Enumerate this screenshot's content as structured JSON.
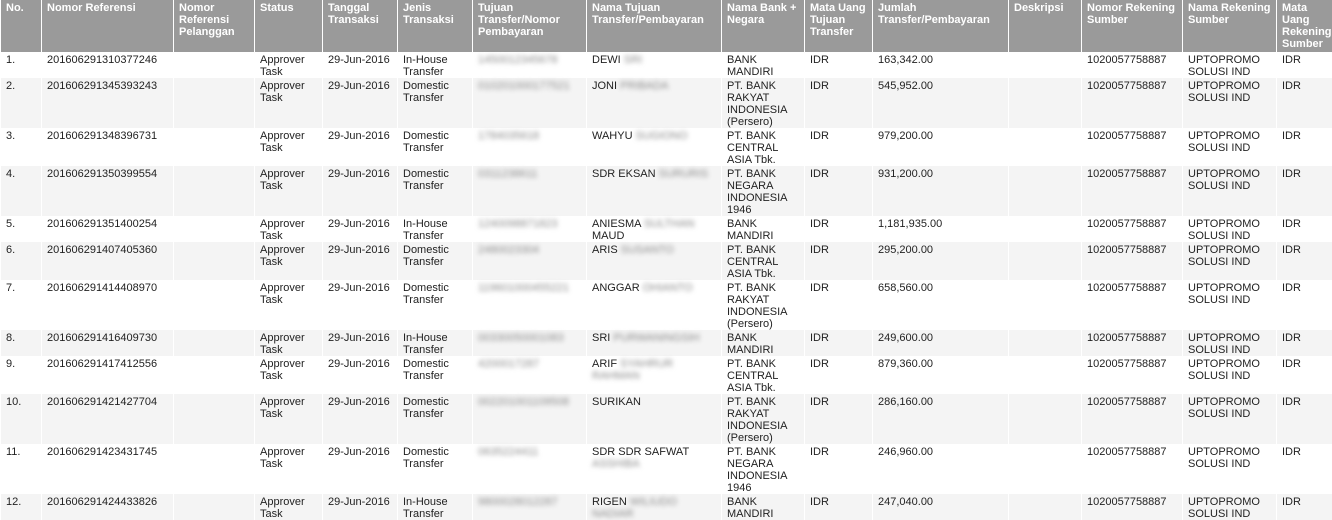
{
  "columns": [
    {
      "key": "no",
      "label": "No."
    },
    {
      "key": "ref",
      "label": "Nomor Referensi"
    },
    {
      "key": "cust_ref",
      "label": "Nomor Referensi Pelanggan"
    },
    {
      "key": "status",
      "label": "Status"
    },
    {
      "key": "date",
      "label": "Tanggal Transaksi"
    },
    {
      "key": "type",
      "label": "Jenis Transaksi"
    },
    {
      "key": "dest",
      "label": "Tujuan Transfer/Nomor Pembayaran"
    },
    {
      "key": "dest_name",
      "label": "Nama Tujuan Transfer/Pembayaran"
    },
    {
      "key": "bank",
      "label": "Nama Bank + Negara"
    },
    {
      "key": "cur",
      "label": "Mata Uang Tujuan Transfer"
    },
    {
      "key": "amount",
      "label": "Jumlah Transfer/Pembayaran"
    },
    {
      "key": "desc",
      "label": "Deskripsi"
    },
    {
      "key": "src_acc",
      "label": "Nomor Rekening Sumber"
    },
    {
      "key": "src_name",
      "label": "Nama Rekening Sumber"
    },
    {
      "key": "src_cur",
      "label": "Mata Uang Rekening Sumber"
    }
  ],
  "rows": [
    {
      "no": "1.",
      "ref": "201606291310377246",
      "cust_ref": "",
      "status": "Approver Task",
      "date": "29-Jun-2016",
      "type": "In-House Transfer",
      "dest": "1450012345678",
      "dest_name": "DEWI",
      "dest_name_hidden": "SRI",
      "bank": "BANK MANDIRI",
      "cur": "IDR",
      "amount": "163,342.00",
      "desc": "",
      "src_acc": "1020057758887",
      "src_name": "UPTOPROMO SOLUSI IND",
      "src_cur": "IDR"
    },
    {
      "no": "2.",
      "ref": "201606291345393243",
      "cust_ref": "",
      "status": "Approver Task",
      "date": "29-Jun-2016",
      "type": "Domestic Transfer",
      "dest": "010201000177521",
      "dest_name": "JONI",
      "dest_name_hidden": "PRIBADA",
      "bank": "PT. BANK RAKYAT INDONESIA (Persero)",
      "cur": "IDR",
      "amount": "545,952.00",
      "desc": "",
      "src_acc": "1020057758887",
      "src_name": "UPTOPROMO SOLUSI IND",
      "src_cur": "IDR"
    },
    {
      "no": "3.",
      "ref": "201606291348396731",
      "cust_ref": "",
      "status": "Approver Task",
      "date": "29-Jun-2016",
      "type": "Domestic Transfer",
      "dest": "1784035618",
      "dest_name": "WAHYU",
      "dest_name_hidden": "SUGIONO",
      "bank": "PT. BANK CENTRAL ASIA Tbk.",
      "cur": "IDR",
      "amount": "979,200.00",
      "desc": "",
      "src_acc": "1020057758887",
      "src_name": "UPTOPROMO SOLUSI IND",
      "src_cur": "IDR"
    },
    {
      "no": "4.",
      "ref": "201606291350399554",
      "cust_ref": "",
      "status": "Approver Task",
      "date": "29-Jun-2016",
      "type": "Domestic Transfer",
      "dest": "0311238611",
      "dest_name": "SDR EKSAN",
      "dest_name_hidden": "SURURIS",
      "bank": "PT. BANK NEGARA INDONESIA 1946",
      "cur": "IDR",
      "amount": "931,200.00",
      "desc": "",
      "src_acc": "1020057758887",
      "src_name": "UPTOPROMO SOLUSI IND",
      "src_cur": "IDR"
    },
    {
      "no": "5.",
      "ref": "201606291351400254",
      "cust_ref": "",
      "status": "Approver Task",
      "date": "29-Jun-2016",
      "type": "In-House Transfer",
      "dest": "1240098871823",
      "dest_name": "ANIESMA",
      "dest_name_hidden": "SULTHAN",
      "dest_name_tail": "MAUD",
      "bank": "BANK MANDIRI",
      "cur": "IDR",
      "amount": "1,181,935.00",
      "desc": "",
      "src_acc": "1020057758887",
      "src_name": "UPTOPROMO SOLUSI IND",
      "src_cur": "IDR"
    },
    {
      "no": "6.",
      "ref": "201606291407405360",
      "cust_ref": "",
      "status": "Approver Task",
      "date": "29-Jun-2016",
      "type": "Domestic Transfer",
      "dest": "2480023304",
      "dest_name": "ARIS",
      "dest_name_hidden": "SUSANTO",
      "bank": "PT. BANK CENTRAL ASIA Tbk.",
      "cur": "IDR",
      "amount": "295,200.00",
      "desc": "",
      "src_acc": "1020057758887",
      "src_name": "UPTOPROMO SOLUSI IND",
      "src_cur": "IDR"
    },
    {
      "no": "7.",
      "ref": "201606291414408970",
      "cust_ref": "",
      "status": "Approver Task",
      "date": "29-Jun-2016",
      "type": "Domestic Transfer",
      "dest": "119601000455221",
      "dest_name": "ANGGAR",
      "dest_name_hidden": "OHIANTO",
      "bank": "PT. BANK RAKYAT INDONESIA (Persero)",
      "cur": "IDR",
      "amount": "658,560.00",
      "desc": "",
      "src_acc": "1020057758887",
      "src_name": "UPTOPROMO SOLUSI IND",
      "src_cur": "IDR"
    },
    {
      "no": "8.",
      "ref": "201606291416409730",
      "cust_ref": "",
      "status": "Approver Task",
      "date": "29-Jun-2016",
      "type": "In-House Transfer",
      "dest": "00330050001083",
      "dest_name": "SRI",
      "dest_name_hidden": "PURWANINGSIH",
      "bank": "BANK MANDIRI",
      "cur": "IDR",
      "amount": "249,600.00",
      "desc": "",
      "src_acc": "1020057758887",
      "src_name": "UPTOPROMO SOLUSI IND",
      "src_cur": "IDR"
    },
    {
      "no": "9.",
      "ref": "201606291417412556",
      "cust_ref": "",
      "status": "Approver Task",
      "date": "29-Jun-2016",
      "type": "Domestic Transfer",
      "dest": "4200017287",
      "dest_name": "ARIF",
      "dest_name_hidden": "SYAHRUR RAHMAN",
      "bank": "PT. BANK CENTRAL ASIA Tbk.",
      "cur": "IDR",
      "amount": "879,360.00",
      "desc": "",
      "src_acc": "1020057758887",
      "src_name": "UPTOPROMO SOLUSI IND",
      "src_cur": "IDR"
    },
    {
      "no": "10.",
      "ref": "201606291421427704",
      "cust_ref": "",
      "status": "Approver Task",
      "date": "29-Jun-2016",
      "type": "Domestic Transfer",
      "dest": "002201001109508",
      "dest_name": "SURIKAN",
      "dest_name_hidden": "",
      "bank": "PT. BANK RAKYAT INDONESIA (Persero)",
      "cur": "IDR",
      "amount": "286,160.00",
      "desc": "",
      "src_acc": "1020057758887",
      "src_name": "UPTOPROMO SOLUSI IND",
      "src_cur": "IDR"
    },
    {
      "no": "11.",
      "ref": "201606291423431745",
      "cust_ref": "",
      "status": "Approver Task",
      "date": "29-Jun-2016",
      "type": "Domestic Transfer",
      "dest": "0635224411",
      "dest_name": "SDR SDR SAFWAT",
      "dest_name_hidden": "ASSHIBA",
      "bank": "PT. BANK NEGARA INDONESIA 1946",
      "cur": "IDR",
      "amount": "246,960.00",
      "desc": "",
      "src_acc": "1020057758887",
      "src_name": "UPTOPROMO SOLUSI IND",
      "src_cur": "IDR"
    },
    {
      "no": "12.",
      "ref": "201606291424433826",
      "cust_ref": "",
      "status": "Approver Task",
      "date": "29-Jun-2016",
      "type": "In-House Transfer",
      "dest": "9800028012287",
      "dest_name": "RIGEN",
      "dest_name_hidden": "WILIUDO NADIAR",
      "bank": "BANK MANDIRI",
      "cur": "IDR",
      "amount": "247,040.00",
      "desc": "",
      "src_acc": "1020057758887",
      "src_name": "UPTOPROMO SOLUSI IND",
      "src_cur": "IDR"
    }
  ]
}
